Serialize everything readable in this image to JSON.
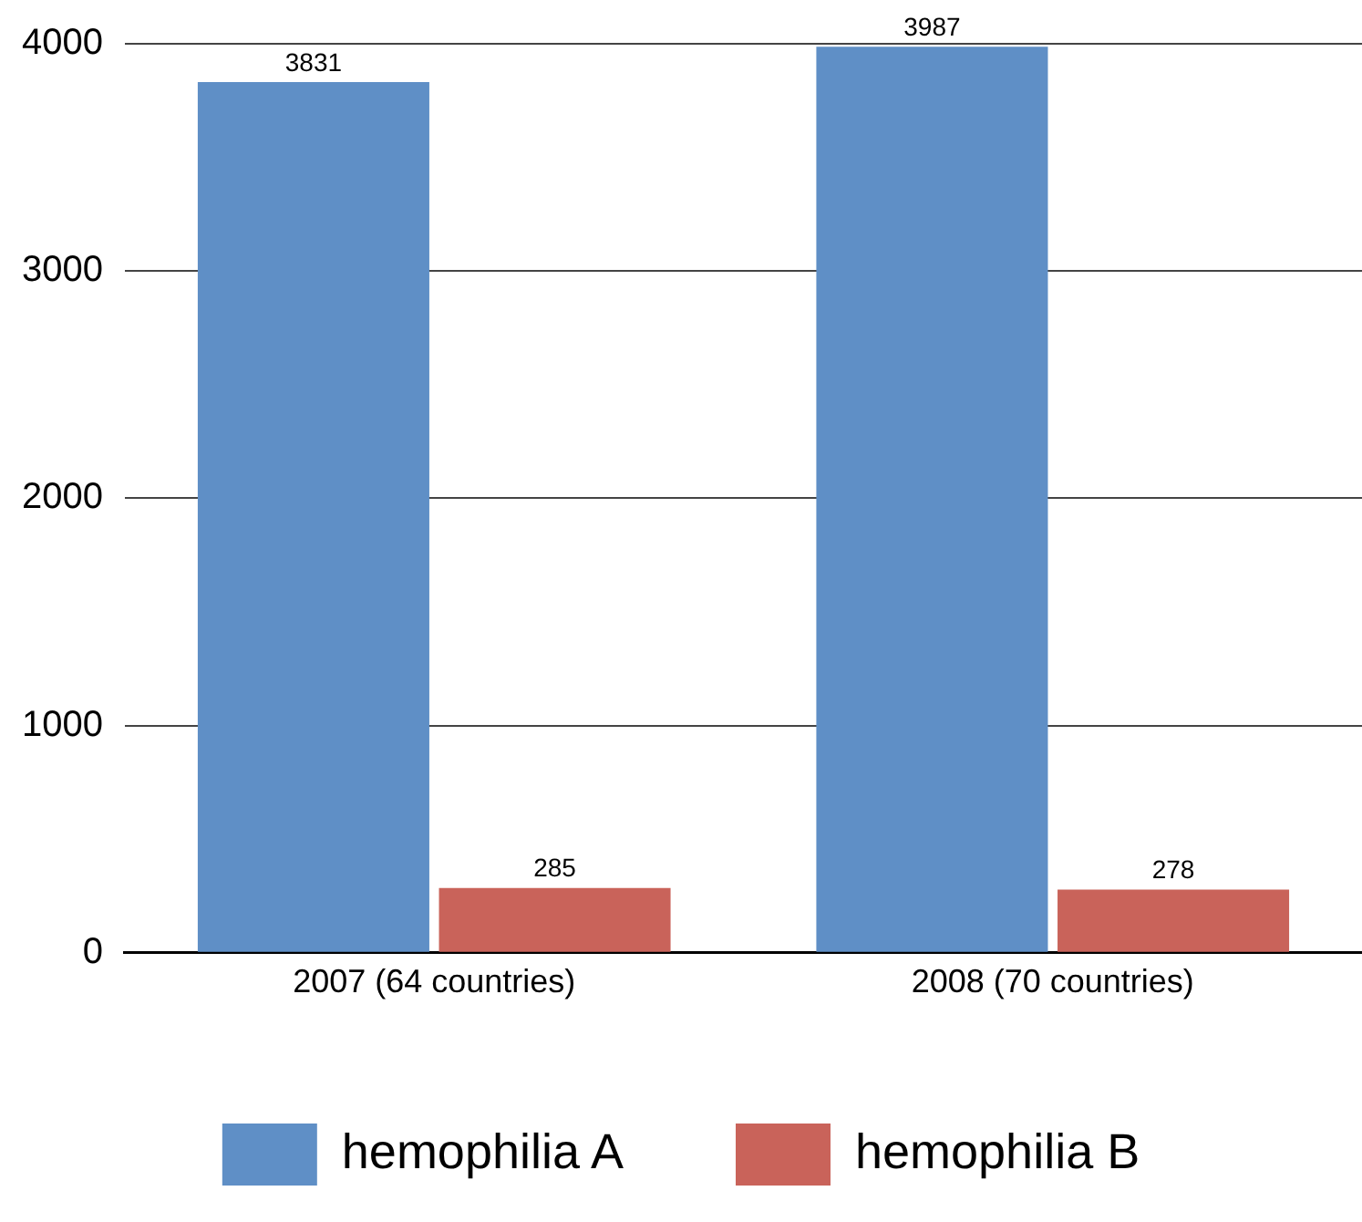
{
  "chart_data": {
    "type": "bar",
    "categories": [
      "2007 (64 countries)",
      "2008 (70 countries)"
    ],
    "series": [
      {
        "name": "hemophilia A",
        "color": "#5f8fc6",
        "values": [
          3831,
          3987
        ]
      },
      {
        "name": "hemophilia B",
        "color": "#c9635a",
        "values": [
          285,
          278
        ]
      }
    ],
    "ylim": [
      0,
      4000
    ],
    "yticks": [
      0,
      1000,
      2000,
      3000,
      4000
    ],
    "grid": "y",
    "legend": "bottom",
    "data_labels": true
  }
}
